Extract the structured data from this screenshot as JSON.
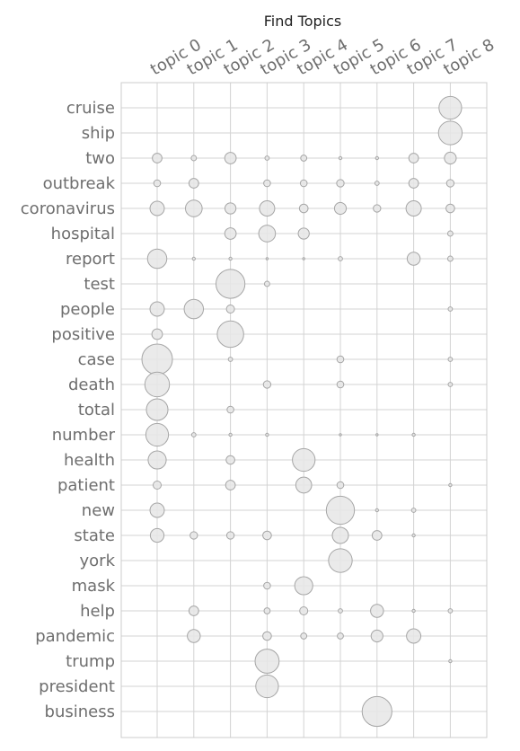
{
  "chart_data": {
    "type": "scatter",
    "title": "Find Topics",
    "subtitle": "",
    "xlabel": "",
    "ylabel": "",
    "grid": true,
    "x_categories": [
      "topic 0",
      "topic 1",
      "topic 2",
      "topic 3",
      "topic 4",
      "topic 5",
      "topic 6",
      "topic 7",
      "topic 8"
    ],
    "y_categories": [
      "cruise",
      "ship",
      "two",
      "outbreak",
      "coronavirus",
      "hospital",
      "report",
      "test",
      "people",
      "positive",
      "case",
      "death",
      "total",
      "number",
      "health",
      "patient",
      "new",
      "state",
      "york",
      "mask",
      "help",
      "pandemic",
      "trump",
      "president",
      "business"
    ],
    "size_note": "values are relative bubble weights (0 = no bubble)",
    "values": [
      [
        0,
        0,
        0,
        0,
        0,
        0,
        0,
        0,
        0.55
      ],
      [
        0,
        0,
        0,
        0,
        0,
        0,
        0,
        0,
        0.6
      ],
      [
        0.1,
        0.03,
        0.14,
        0.02,
        0.04,
        0.01,
        0.01,
        0.1,
        0.15
      ],
      [
        0.05,
        0.1,
        0,
        0.05,
        0.05,
        0.06,
        0.02,
        0.1,
        0.06
      ],
      [
        0.22,
        0.3,
        0.13,
        0.25,
        0.08,
        0.15,
        0.06,
        0.25,
        0.08
      ],
      [
        0,
        0,
        0.14,
        0.3,
        0.13,
        0,
        0,
        0,
        0.03
      ],
      [
        0.4,
        0.01,
        0.01,
        0.005,
        0.005,
        0.02,
        0,
        0.18,
        0.03
      ],
      [
        0,
        0,
        0.9,
        0.03,
        0,
        0,
        0,
        0,
        0
      ],
      [
        0.22,
        0.4,
        0.07,
        0,
        0,
        0,
        0,
        0,
        0.02
      ],
      [
        0.12,
        0,
        0.75,
        0,
        0,
        0,
        0,
        0,
        0
      ],
      [
        1.0,
        0,
        0.02,
        0,
        0,
        0.05,
        0,
        0,
        0.02
      ],
      [
        0.65,
        0,
        0,
        0.06,
        0,
        0.05,
        0,
        0,
        0.02
      ],
      [
        0.5,
        0,
        0.05,
        0,
        0,
        0,
        0,
        0,
        0
      ],
      [
        0.55,
        0.02,
        0.01,
        0.01,
        0,
        0.005,
        0.005,
        0.01,
        0
      ],
      [
        0.35,
        0,
        0.08,
        0,
        0.55,
        0,
        0,
        0,
        0
      ],
      [
        0.07,
        0,
        0.1,
        0,
        0.27,
        0.05,
        0,
        0,
        0.01
      ],
      [
        0.22,
        0,
        0,
        0,
        0,
        0.85,
        0.01,
        0.02,
        0
      ],
      [
        0.2,
        0.06,
        0.06,
        0.08,
        0,
        0.28,
        0.1,
        0.01,
        0
      ],
      [
        0,
        0,
        0,
        0,
        0,
        0.6,
        0,
        0,
        0
      ],
      [
        0,
        0,
        0,
        0.05,
        0.35,
        0,
        0,
        0,
        0
      ],
      [
        0,
        0.1,
        0,
        0.04,
        0.07,
        0.02,
        0.18,
        0.01,
        0.02
      ],
      [
        0,
        0.18,
        0,
        0.08,
        0.04,
        0.04,
        0.15,
        0.22,
        0
      ],
      [
        0,
        0,
        0,
        0.62,
        0,
        0,
        0,
        0,
        0.01
      ],
      [
        0,
        0,
        0,
        0.55,
        0,
        0,
        0,
        0,
        0
      ],
      [
        0,
        0,
        0,
        0,
        0,
        0,
        0.95,
        0,
        0
      ]
    ],
    "colors": {
      "bubble_fill": "#e6e6e6",
      "bubble_stroke": "#a6a6a6",
      "grid": "#d3d3d3",
      "frame": "#cccccc",
      "label": "#6e6e6e",
      "title": "#222222"
    }
  }
}
